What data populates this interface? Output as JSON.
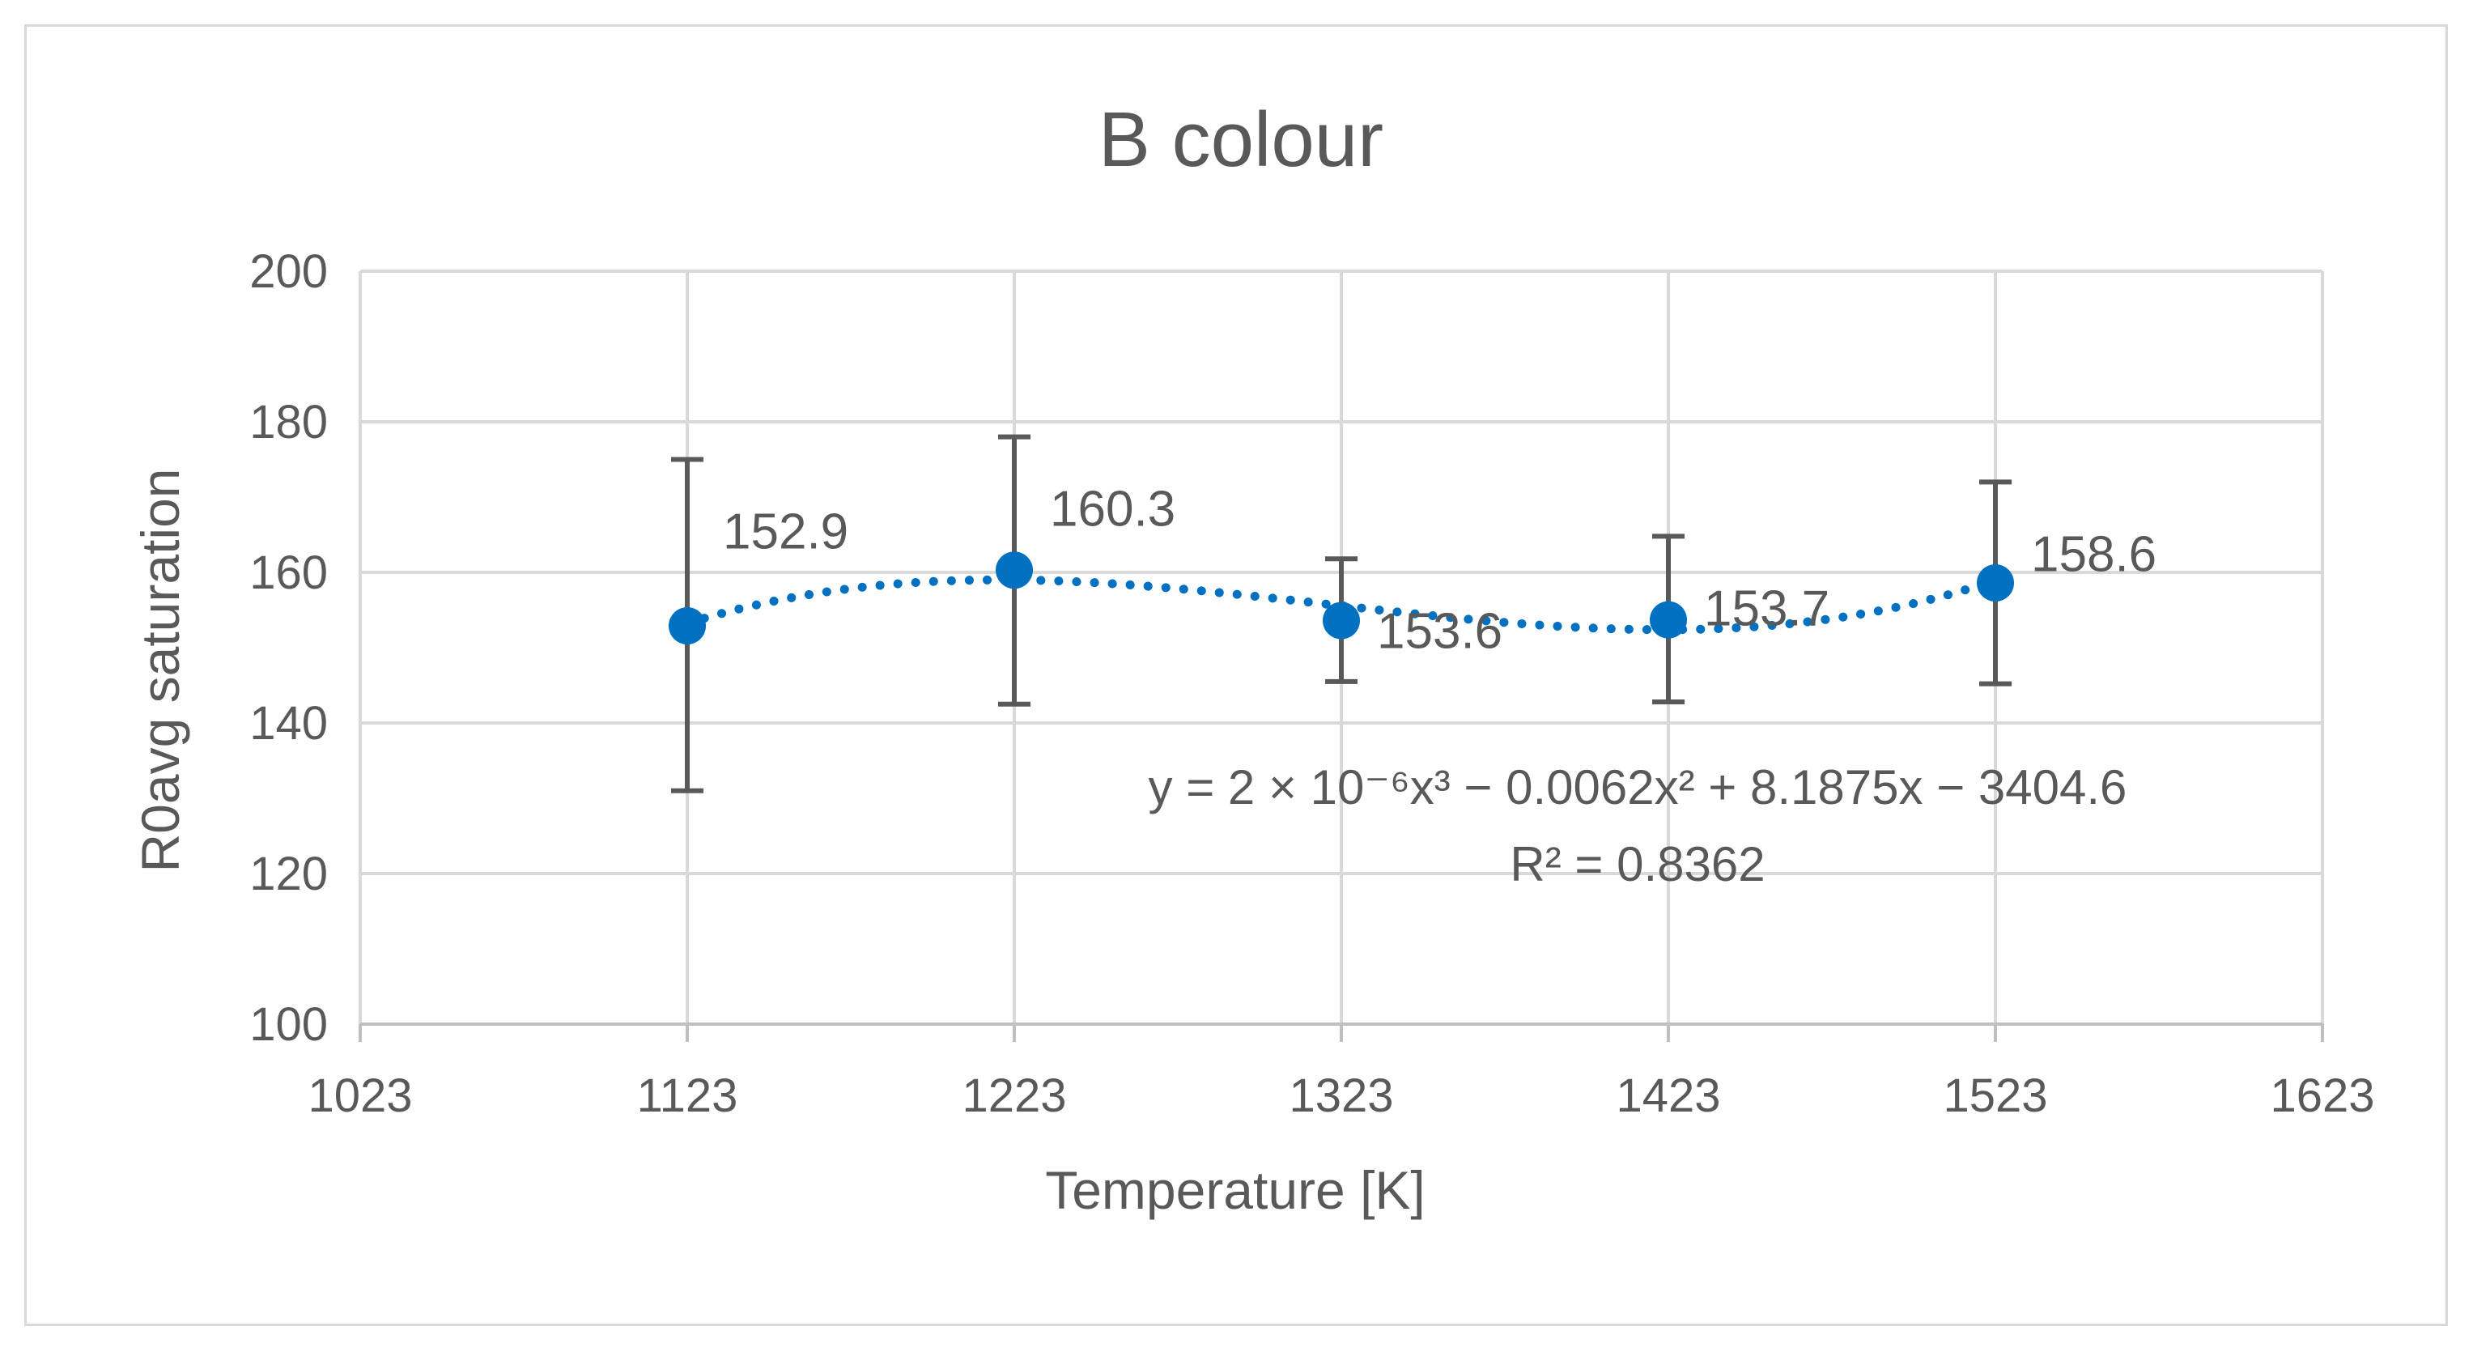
{
  "chart_data": {
    "type": "scatter",
    "title": "B colour",
    "xlabel": "Temperature [K]",
    "ylabel": "R0avg saturation",
    "xlim": [
      1023,
      1623
    ],
    "ylim": [
      100,
      200
    ],
    "xticks": [
      1023,
      1123,
      1223,
      1323,
      1423,
      1523,
      1623
    ],
    "yticks": [
      100,
      120,
      140,
      160,
      180,
      200
    ],
    "grid": true,
    "marker_color": "#0070c0",
    "errorbar_color": "#595959",
    "points": [
      {
        "x": 1123,
        "y": 152.9,
        "label": "152.9",
        "err_low": 131.0,
        "err_high": 175.0
      },
      {
        "x": 1223,
        "y": 160.3,
        "label": "160.3",
        "err_low": 142.5,
        "err_high": 178.0
      },
      {
        "x": 1323,
        "y": 153.6,
        "label": "153.6",
        "err_low": 145.5,
        "err_high": 161.8
      },
      {
        "x": 1423,
        "y": 153.7,
        "label": "153.7",
        "err_low": 142.8,
        "err_high": 164.8
      },
      {
        "x": 1523,
        "y": 158.6,
        "label": "158.6",
        "err_low": 145.2,
        "err_high": 172.0
      }
    ],
    "trendline": {
      "type": "polynomial",
      "order": 3,
      "style": "dotted",
      "color": "#0070c0",
      "equation": "y = 2 × 10⁻⁶x³ − 0.0062x² + 8.1875x − 3404.6",
      "r_squared": "R² = 0.8362"
    }
  }
}
